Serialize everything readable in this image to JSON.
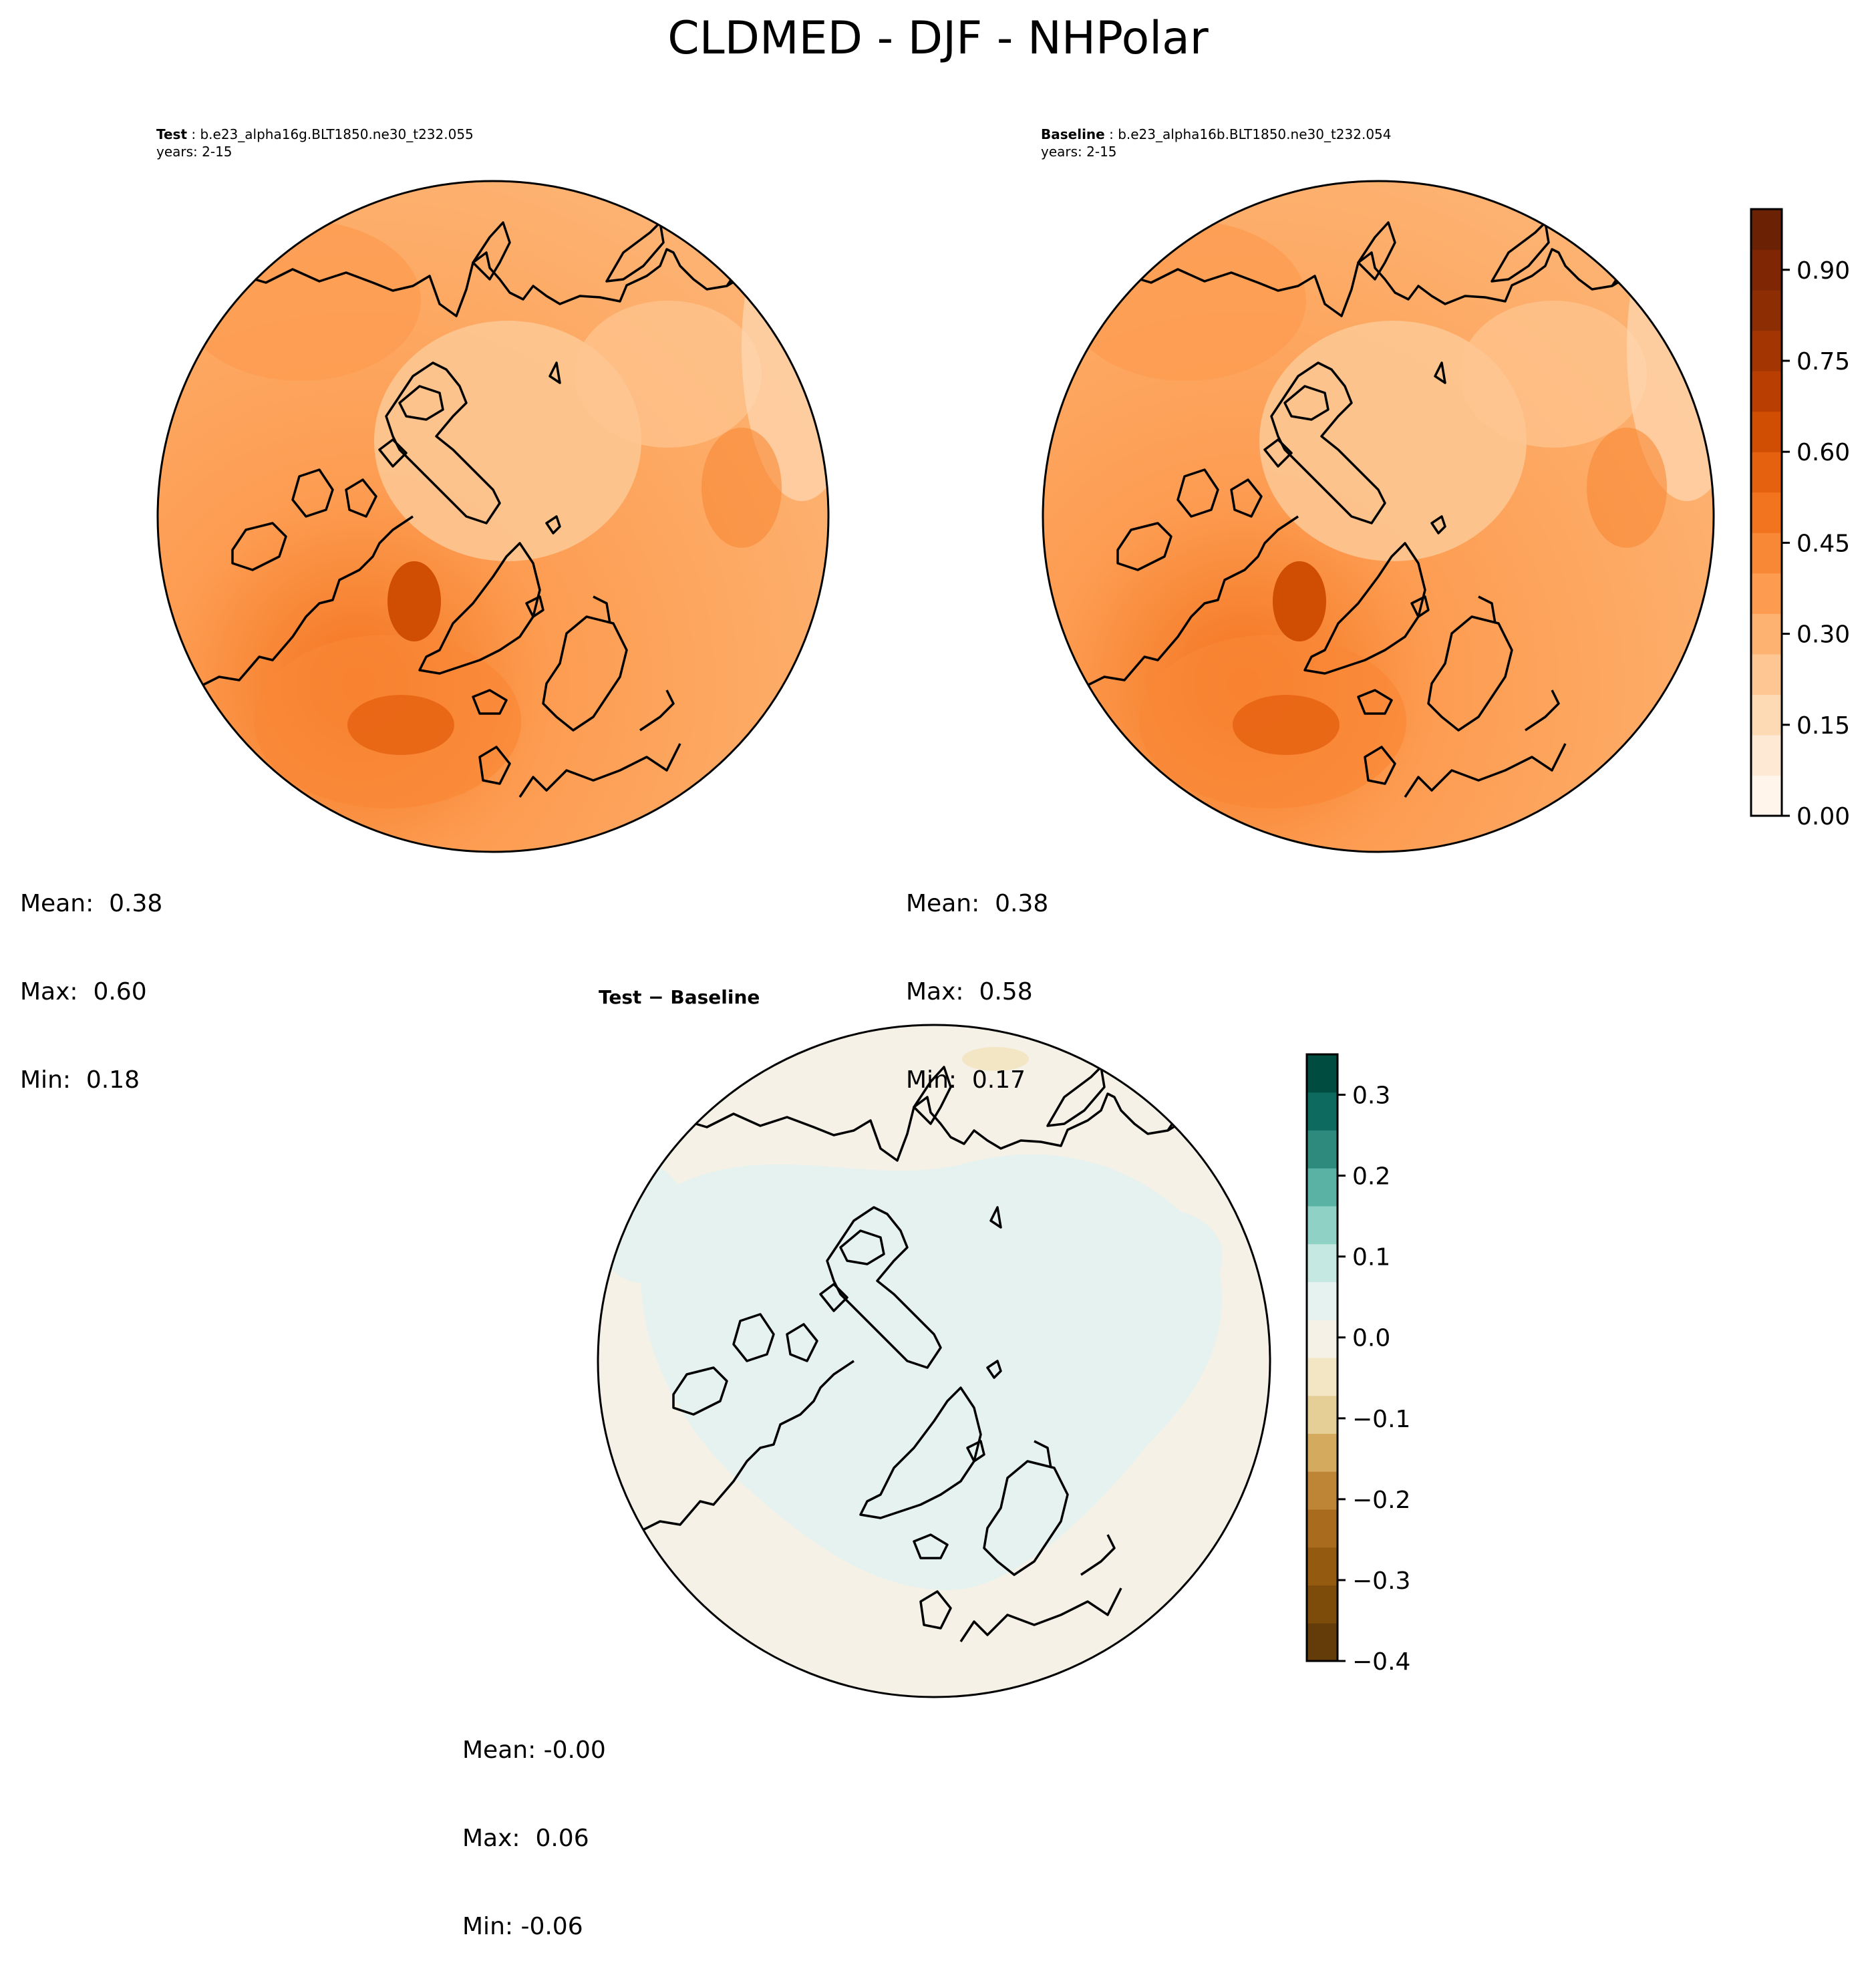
{
  "figure_title": "CLDMED - DJF - NHPolar",
  "test_panel": {
    "label": "Test",
    "case": "b.e23_alpha16g.BLT1850.ne30_t232.055",
    "years": "years: 2-15",
    "stats": {
      "mean": "Mean:  0.38",
      "max": "Max:  0.60",
      "min": "Min:  0.18"
    }
  },
  "baseline_panel": {
    "label": "Baseline",
    "case": "b.e23_alpha16b.BLT1850.ne30_t232.054",
    "years": "years: 2-15",
    "stats": {
      "mean": "Mean:  0.38",
      "max": "Max:  0.58",
      "min": "Min:  0.17"
    }
  },
  "difference_panel": {
    "label": "Test − Baseline",
    "stats": {
      "mean": "Mean: -0.00",
      "max": "Max:  0.06",
      "min": "Min: -0.06"
    }
  },
  "colorbar_main": {
    "tick_labels": [
      "0.00",
      "0.15",
      "0.30",
      "0.45",
      "0.60",
      "0.75",
      "0.90"
    ],
    "tick_values": [
      0.0,
      0.15,
      0.3,
      0.45,
      0.6,
      0.75,
      0.9
    ],
    "range": [
      0.0,
      1.0
    ],
    "colors": [
      "#fff5eb",
      "#fee9d4",
      "#fdd9b4",
      "#fdc692",
      "#fdb271",
      "#fd9c51",
      "#f98836",
      "#f3741f",
      "#e5600f",
      "#d04d04",
      "#b83e02",
      "#a33503",
      "#8c2d04",
      "#7f2704",
      "#6b2104"
    ],
    "colormap": "Oranges"
  },
  "colorbar_diff": {
    "tick_labels": [
      "0.3",
      "0.2",
      "0.1",
      "0.0",
      "−0.1",
      "−0.2",
      "−0.3",
      "−0.4"
    ],
    "tick_values": [
      0.3,
      0.2,
      0.1,
      0.0,
      -0.1,
      -0.2,
      -0.3,
      -0.4
    ],
    "range": [
      -0.4,
      0.35
    ],
    "colors": [
      "#643c0a",
      "#7d4c0b",
      "#945a10",
      "#a96c1f",
      "#bf8536",
      "#d4aa5e",
      "#e6cf96",
      "#f2e6c4",
      "#f5f1e6",
      "#e6f2ef",
      "#c5e8e2",
      "#8fd1c4",
      "#5ab2a5",
      "#2d8a7d",
      "#0c6a5e",
      "#004c40"
    ],
    "colormap": "BrBG"
  },
  "map_colors": {
    "test_background": "#fdb271",
    "baseline_background": "#fdb271",
    "difference_background": "#f5f1e6",
    "difference_positive": "#e6f2ef",
    "coastline": "#000000"
  }
}
